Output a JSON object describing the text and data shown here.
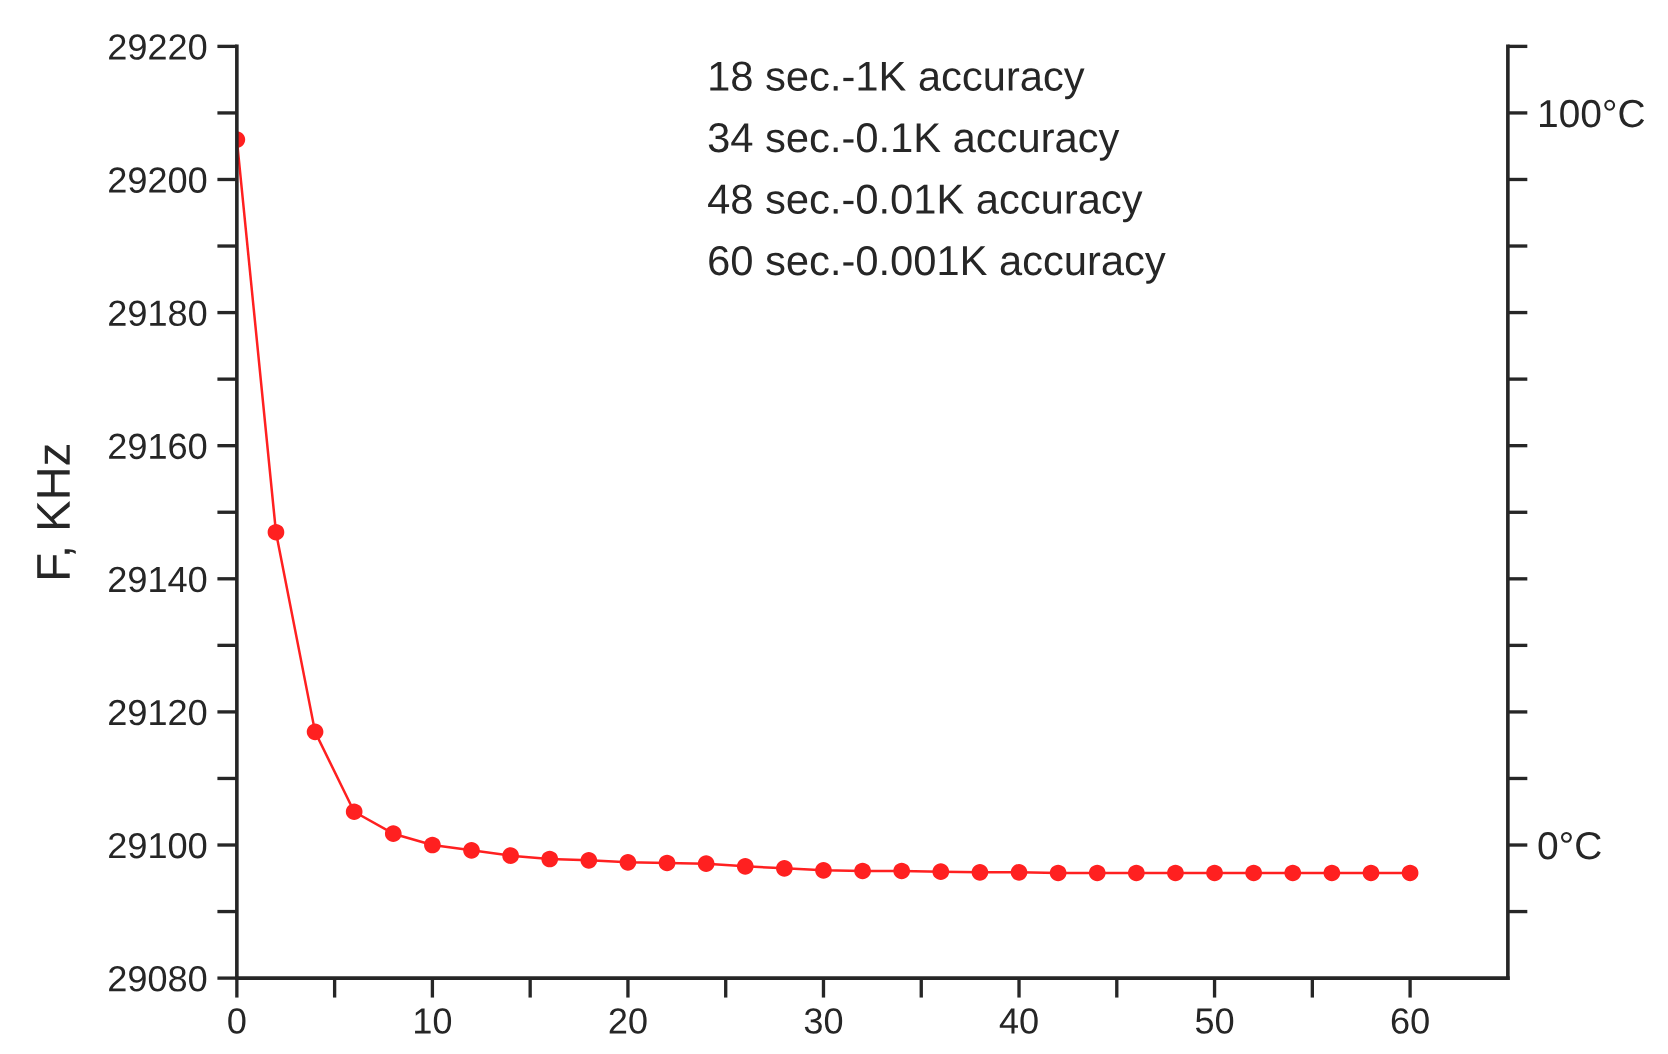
{
  "chart_data": {
    "type": "line",
    "ylabel": "F, KHz",
    "x": [
      0,
      2,
      4,
      6,
      8,
      10,
      12,
      14,
      16,
      18,
      20,
      22,
      24,
      26,
      28,
      30,
      32,
      34,
      36,
      38,
      40,
      42,
      44,
      46,
      48,
      50,
      52,
      54,
      56,
      58,
      60
    ],
    "series": [
      {
        "color": "#ff2020",
        "values": [
          29206,
          29147,
          29117,
          29105,
          29101.7,
          29100,
          29099.2,
          29098.4,
          29097.9,
          29097.7,
          29097.4,
          29097.3,
          29097.2,
          29096.8,
          29096.5,
          29096.2,
          29096.1,
          29096.1,
          29096,
          29095.9,
          29095.9,
          29095.8,
          29095.8,
          29095.8,
          29095.8,
          29095.8,
          29095.8,
          29095.8,
          29095.8,
          29095.8,
          29095.8
        ]
      }
    ],
    "marker": "circle",
    "line_style": "solid",
    "grid": false,
    "legend": false,
    "xlim": [
      0,
      65
    ],
    "xticks": [
      0,
      {
        "value": 5,
        "label": null
      },
      10,
      {
        "value": 15,
        "label": null
      },
      20,
      {
        "value": 25,
        "label": null
      },
      30,
      {
        "value": 35,
        "label": null
      },
      40,
      {
        "value": 45,
        "label": null
      },
      50,
      {
        "value": 55,
        "label": null
      },
      60
    ],
    "ylim": [
      29080,
      29220
    ],
    "yticks": [
      29080,
      {
        "value": 29090,
        "label": null
      },
      29100,
      {
        "value": 29110,
        "label": null
      },
      29120,
      {
        "value": 29130,
        "label": null
      },
      29140,
      {
        "value": 29150,
        "label": null
      },
      29160,
      {
        "value": 29170,
        "label": null
      },
      29180,
      {
        "value": 29190,
        "label": null
      },
      29200,
      {
        "value": 29210,
        "label": null
      },
      29220
    ],
    "y2lim": [
      -18.18,
      109.09
    ],
    "y2ticks": [
      {
        "value": -9.09,
        "label": null
      },
      {
        "value": 0,
        "label": "0°C"
      },
      {
        "value": 9.09,
        "label": null
      },
      {
        "value": 18.18,
        "label": null
      },
      {
        "value": 27.27,
        "label": null
      },
      {
        "value": 36.36,
        "label": null
      },
      {
        "value": 45.45,
        "label": null
      },
      {
        "value": 54.55,
        "label": null
      },
      {
        "value": 63.64,
        "label": null
      },
      {
        "value": 72.73,
        "label": null
      },
      {
        "value": 81.82,
        "label": null
      },
      {
        "value": 90.91,
        "label": null
      },
      {
        "value": 100,
        "label": "100°C"
      },
      {
        "value": 109.09,
        "label": null
      }
    ],
    "annotations": [
      "18 sec.-1K accuracy",
      "34 sec.-0.1K accuracy",
      "48 sec.-0.01K accuracy",
      "60 sec.-0.001K accuracy"
    ]
  }
}
